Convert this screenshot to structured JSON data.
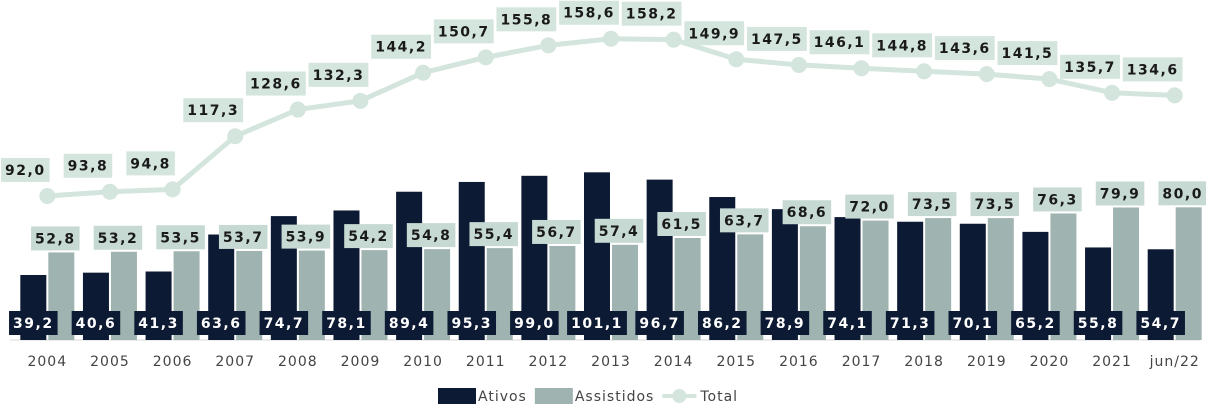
{
  "chart_data": {
    "type": "bar-line",
    "categories": [
      "2004",
      "2005",
      "2006",
      "2007",
      "2008",
      "2009",
      "2010",
      "2011",
      "2012",
      "2013",
      "2014",
      "2015",
      "2016",
      "2017",
      "2018",
      "2019",
      "2020",
      "2021",
      "jun/22"
    ],
    "series": [
      {
        "name": "Ativos",
        "type": "bar",
        "color": "#0c1a33",
        "values": [
          39.2,
          40.6,
          41.3,
          63.6,
          74.7,
          78.1,
          89.4,
          95.3,
          99.0,
          101.1,
          96.7,
          86.2,
          78.9,
          74.1,
          71.3,
          70.1,
          65.2,
          55.8,
          54.7
        ],
        "value_labels": [
          "39,2",
          "40,6",
          "41,3",
          "63,6",
          "74,7",
          "78,1",
          "89,4",
          "95,3",
          "99,0",
          "101,1",
          "96,7",
          "86,2",
          "78,9",
          "74,1",
          "71,3",
          "70,1",
          "65,2",
          "55,8",
          "54,7"
        ]
      },
      {
        "name": "Assistidos",
        "type": "bar",
        "color": "#9fb3b1",
        "values": [
          52.8,
          53.2,
          53.5,
          53.7,
          53.9,
          54.2,
          54.8,
          55.4,
          56.7,
          57.4,
          61.5,
          63.7,
          68.6,
          72.0,
          73.5,
          73.5,
          76.3,
          79.9,
          80.0
        ],
        "value_labels": [
          "52,8",
          "53,2",
          "53,5",
          "53,7",
          "53,9",
          "54,2",
          "54,8",
          "55,4",
          "56,7",
          "57,4",
          "61,5",
          "63,7",
          "68,6",
          "72,0",
          "73,5",
          "73,5",
          "76,3",
          "79,9",
          "80,0"
        ]
      },
      {
        "name": "Total",
        "type": "line",
        "axis": "y2",
        "color": "#d3e5dd",
        "values": [
          92.0,
          93.8,
          94.8,
          117.3,
          128.6,
          132.3,
          144.2,
          150.7,
          155.8,
          158.6,
          158.2,
          149.9,
          147.5,
          146.1,
          144.8,
          143.6,
          141.5,
          135.7,
          134.6
        ],
        "value_labels": [
          "92,0",
          "93,8",
          "94,8",
          "117,3",
          "128,6",
          "132,3",
          "144,2",
          "150,7",
          "155,8",
          "158,6",
          "158,2",
          "149,9",
          "147,5",
          "146,1",
          "144,8",
          "143,6",
          "141,5",
          "135,7",
          "134,6"
        ]
      }
    ],
    "ylim": [
      0,
      205
    ],
    "y2lim": [
      31,
      175
    ],
    "legend": "bottom"
  }
}
